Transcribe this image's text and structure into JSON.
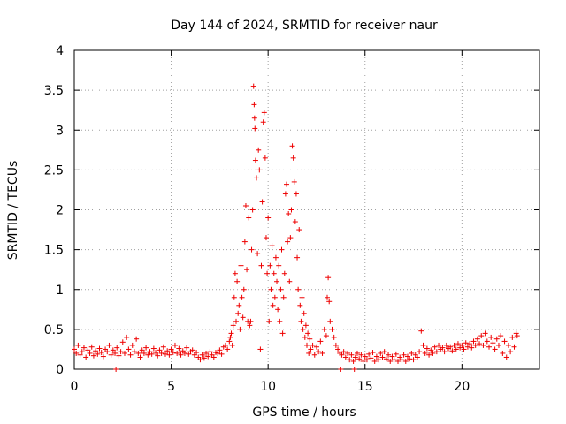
{
  "chart_data": {
    "type": "scatter",
    "title": "Day 144 of 2024, SRMTID for receiver naur",
    "xlabel": "GPS time / hours",
    "ylabel": "SRMTID / TECUs",
    "xlim": [
      0,
      24
    ],
    "ylim": [
      0,
      4
    ],
    "x_ticks": [
      0,
      5,
      10,
      15,
      20
    ],
    "y_ticks": [
      0,
      0.5,
      1,
      1.5,
      2,
      2.5,
      3,
      3.5,
      4
    ],
    "x_tick_labels": [
      "0",
      "5",
      "10",
      "15",
      "20"
    ],
    "y_tick_labels": [
      "0",
      "0.5",
      "1",
      "1.5",
      "2",
      "2.5",
      "3",
      "3.5",
      "4"
    ],
    "grid": true,
    "marker": "+",
    "color": "#ee0000",
    "series": [
      {
        "name": "SRMTID",
        "points": [
          [
            0.0,
            0.25
          ],
          [
            0.1,
            0.2
          ],
          [
            0.2,
            0.3
          ],
          [
            0.3,
            0.18
          ],
          [
            0.4,
            0.22
          ],
          [
            0.5,
            0.27
          ],
          [
            0.6,
            0.15
          ],
          [
            0.7,
            0.24
          ],
          [
            0.8,
            0.2
          ],
          [
            0.9,
            0.28
          ],
          [
            1.0,
            0.17
          ],
          [
            1.1,
            0.23
          ],
          [
            1.2,
            0.19
          ],
          [
            1.3,
            0.26
          ],
          [
            1.4,
            0.21
          ],
          [
            1.5,
            0.16
          ],
          [
            1.6,
            0.25
          ],
          [
            1.7,
            0.22
          ],
          [
            1.8,
            0.3
          ],
          [
            1.9,
            0.18
          ],
          [
            2.0,
            0.24
          ],
          [
            2.1,
            0.2
          ],
          [
            2.15,
            0.0
          ],
          [
            2.2,
            0.27
          ],
          [
            2.3,
            0.17
          ],
          [
            2.4,
            0.22
          ],
          [
            2.5,
            0.34
          ],
          [
            2.6,
            0.2
          ],
          [
            2.7,
            0.4
          ],
          [
            2.8,
            0.25
          ],
          [
            2.9,
            0.18
          ],
          [
            3.0,
            0.3
          ],
          [
            3.1,
            0.22
          ],
          [
            3.2,
            0.38
          ],
          [
            3.3,
            0.2
          ],
          [
            3.4,
            0.15
          ],
          [
            3.5,
            0.24
          ],
          [
            3.6,
            0.2
          ],
          [
            3.7,
            0.27
          ],
          [
            3.8,
            0.18
          ],
          [
            3.9,
            0.22
          ],
          [
            4.0,
            0.19
          ],
          [
            4.1,
            0.26
          ],
          [
            4.2,
            0.21
          ],
          [
            4.3,
            0.17
          ],
          [
            4.4,
            0.24
          ],
          [
            4.5,
            0.2
          ],
          [
            4.6,
            0.28
          ],
          [
            4.7,
            0.19
          ],
          [
            4.8,
            0.23
          ],
          [
            4.9,
            0.18
          ],
          [
            5.0,
            0.25
          ],
          [
            5.1,
            0.21
          ],
          [
            5.2,
            0.3
          ],
          [
            5.3,
            0.2
          ],
          [
            5.4,
            0.26
          ],
          [
            5.5,
            0.18
          ],
          [
            5.6,
            0.23
          ],
          [
            5.7,
            0.2
          ],
          [
            5.8,
            0.27
          ],
          [
            5.9,
            0.19
          ],
          [
            6.0,
            0.22
          ],
          [
            6.1,
            0.24
          ],
          [
            6.2,
            0.18
          ],
          [
            6.3,
            0.21
          ],
          [
            6.4,
            0.15
          ],
          [
            6.5,
            0.12
          ],
          [
            6.6,
            0.18
          ],
          [
            6.7,
            0.14
          ],
          [
            6.8,
            0.2
          ],
          [
            6.9,
            0.16
          ],
          [
            7.0,
            0.22
          ],
          [
            7.1,
            0.18
          ],
          [
            7.2,
            0.15
          ],
          [
            7.3,
            0.21
          ],
          [
            7.4,
            0.2
          ],
          [
            7.5,
            0.24
          ],
          [
            7.6,
            0.19
          ],
          [
            7.7,
            0.28
          ],
          [
            7.8,
            0.3
          ],
          [
            7.9,
            0.25
          ],
          [
            8.0,
            0.35
          ],
          [
            8.05,
            0.4
          ],
          [
            8.1,
            0.45
          ],
          [
            8.15,
            0.3
          ],
          [
            8.2,
            0.55
          ],
          [
            8.25,
            0.9
          ],
          [
            8.3,
            1.2
          ],
          [
            8.35,
            0.6
          ],
          [
            8.4,
            1.1
          ],
          [
            8.45,
            0.7
          ],
          [
            8.5,
            0.8
          ],
          [
            8.55,
            0.5
          ],
          [
            8.6,
            1.3
          ],
          [
            8.65,
            0.9
          ],
          [
            8.7,
            0.65
          ],
          [
            8.75,
            1.0
          ],
          [
            8.8,
            1.6
          ],
          [
            8.85,
            2.05
          ],
          [
            8.9,
            1.25
          ],
          [
            8.95,
            0.6
          ],
          [
            9.0,
            1.9
          ],
          [
            9.05,
            0.55
          ],
          [
            9.1,
            0.6
          ],
          [
            9.15,
            1.5
          ],
          [
            9.2,
            2.0
          ],
          [
            9.25,
            3.55
          ],
          [
            9.28,
            3.32
          ],
          [
            9.3,
            3.15
          ],
          [
            9.32,
            3.02
          ],
          [
            9.35,
            2.62
          ],
          [
            9.4,
            2.4
          ],
          [
            9.45,
            1.45
          ],
          [
            9.5,
            2.75
          ],
          [
            9.55,
            2.5
          ],
          [
            9.6,
            0.25
          ],
          [
            9.65,
            1.3
          ],
          [
            9.7,
            2.1
          ],
          [
            9.75,
            3.1
          ],
          [
            9.8,
            3.22
          ],
          [
            9.85,
            2.65
          ],
          [
            9.9,
            1.65
          ],
          [
            9.95,
            1.2
          ],
          [
            10.0,
            1.9
          ],
          [
            10.05,
            0.6
          ],
          [
            10.1,
            1.3
          ],
          [
            10.15,
            1.0
          ],
          [
            10.2,
            1.55
          ],
          [
            10.25,
            0.8
          ],
          [
            10.3,
            1.2
          ],
          [
            10.35,
            0.9
          ],
          [
            10.4,
            1.4
          ],
          [
            10.45,
            1.1
          ],
          [
            10.5,
            0.75
          ],
          [
            10.55,
            1.3
          ],
          [
            10.6,
            0.6
          ],
          [
            10.65,
            1.0
          ],
          [
            10.7,
            1.5
          ],
          [
            10.75,
            0.45
          ],
          [
            10.8,
            0.9
          ],
          [
            10.85,
            1.2
          ],
          [
            10.9,
            2.2
          ],
          [
            10.95,
            2.32
          ],
          [
            11.0,
            1.6
          ],
          [
            11.05,
            1.95
          ],
          [
            11.1,
            1.1
          ],
          [
            11.15,
            1.65
          ],
          [
            11.2,
            2.0
          ],
          [
            11.25,
            2.8
          ],
          [
            11.3,
            2.65
          ],
          [
            11.35,
            2.35
          ],
          [
            11.4,
            1.85
          ],
          [
            11.45,
            2.2
          ],
          [
            11.5,
            1.4
          ],
          [
            11.55,
            1.0
          ],
          [
            11.6,
            1.75
          ],
          [
            11.65,
            0.8
          ],
          [
            11.7,
            0.6
          ],
          [
            11.75,
            0.9
          ],
          [
            11.8,
            0.5
          ],
          [
            11.85,
            0.7
          ],
          [
            11.9,
            0.4
          ],
          [
            11.95,
            0.55
          ],
          [
            12.0,
            0.3
          ],
          [
            12.05,
            0.45
          ],
          [
            12.1,
            0.2
          ],
          [
            12.15,
            0.38
          ],
          [
            12.2,
            0.25
          ],
          [
            12.3,
            0.3
          ],
          [
            12.4,
            0.18
          ],
          [
            12.5,
            0.28
          ],
          [
            12.6,
            0.22
          ],
          [
            12.7,
            0.35
          ],
          [
            12.8,
            0.2
          ],
          [
            12.9,
            0.5
          ],
          [
            13.0,
            0.42
          ],
          [
            13.05,
            0.9
          ],
          [
            13.1,
            1.15
          ],
          [
            13.15,
            0.85
          ],
          [
            13.2,
            0.6
          ],
          [
            13.3,
            0.5
          ],
          [
            13.4,
            0.4
          ],
          [
            13.5,
            0.3
          ],
          [
            13.6,
            0.25
          ],
          [
            13.7,
            0.2
          ],
          [
            13.75,
            0.0
          ],
          [
            13.8,
            0.18
          ],
          [
            13.9,
            0.22
          ],
          [
            14.0,
            0.15
          ],
          [
            14.1,
            0.2
          ],
          [
            14.2,
            0.12
          ],
          [
            14.3,
            0.18
          ],
          [
            14.4,
            0.1
          ],
          [
            14.45,
            0.0
          ],
          [
            14.5,
            0.15
          ],
          [
            14.6,
            0.2
          ],
          [
            14.7,
            0.13
          ],
          [
            14.8,
            0.18
          ],
          [
            14.9,
            0.1
          ],
          [
            15.0,
            0.16
          ],
          [
            15.1,
            0.12
          ],
          [
            15.2,
            0.19
          ],
          [
            15.3,
            0.14
          ],
          [
            15.4,
            0.21
          ],
          [
            15.5,
            0.1
          ],
          [
            15.6,
            0.16
          ],
          [
            15.7,
            0.12
          ],
          [
            15.8,
            0.2
          ],
          [
            15.9,
            0.15
          ],
          [
            16.0,
            0.22
          ],
          [
            16.1,
            0.13
          ],
          [
            16.2,
            0.18
          ],
          [
            16.3,
            0.1
          ],
          [
            16.4,
            0.16
          ],
          [
            16.5,
            0.12
          ],
          [
            16.6,
            0.19
          ],
          [
            16.7,
            0.1
          ],
          [
            16.8,
            0.15
          ],
          [
            16.9,
            0.12
          ],
          [
            17.0,
            0.18
          ],
          [
            17.1,
            0.1
          ],
          [
            17.2,
            0.16
          ],
          [
            17.3,
            0.13
          ],
          [
            17.4,
            0.2
          ],
          [
            17.5,
            0.12
          ],
          [
            17.6,
            0.18
          ],
          [
            17.7,
            0.15
          ],
          [
            17.8,
            0.22
          ],
          [
            17.9,
            0.48
          ],
          [
            18.0,
            0.3
          ],
          [
            18.1,
            0.2
          ],
          [
            18.2,
            0.26
          ],
          [
            18.3,
            0.18
          ],
          [
            18.4,
            0.24
          ],
          [
            18.5,
            0.2
          ],
          [
            18.6,
            0.28
          ],
          [
            18.7,
            0.22
          ],
          [
            18.8,
            0.3
          ],
          [
            18.9,
            0.25
          ],
          [
            19.0,
            0.27
          ],
          [
            19.1,
            0.22
          ],
          [
            19.2,
            0.3
          ],
          [
            19.3,
            0.26
          ],
          [
            19.4,
            0.28
          ],
          [
            19.5,
            0.23
          ],
          [
            19.6,
            0.3
          ],
          [
            19.7,
            0.25
          ],
          [
            19.8,
            0.32
          ],
          [
            19.9,
            0.27
          ],
          [
            20.0,
            0.3
          ],
          [
            20.1,
            0.25
          ],
          [
            20.2,
            0.33
          ],
          [
            20.3,
            0.28
          ],
          [
            20.4,
            0.32
          ],
          [
            20.5,
            0.27
          ],
          [
            20.6,
            0.35
          ],
          [
            20.7,
            0.3
          ],
          [
            20.8,
            0.38
          ],
          [
            20.9,
            0.32
          ],
          [
            21.0,
            0.42
          ],
          [
            21.1,
            0.3
          ],
          [
            21.2,
            0.45
          ],
          [
            21.3,
            0.35
          ],
          [
            21.4,
            0.28
          ],
          [
            21.5,
            0.4
          ],
          [
            21.6,
            0.33
          ],
          [
            21.7,
            0.25
          ],
          [
            21.8,
            0.38
          ],
          [
            21.9,
            0.3
          ],
          [
            22.0,
            0.42
          ],
          [
            22.1,
            0.2
          ],
          [
            22.2,
            0.35
          ],
          [
            22.3,
            0.15
          ],
          [
            22.4,
            0.3
          ],
          [
            22.5,
            0.22
          ],
          [
            22.6,
            0.4
          ],
          [
            22.7,
            0.28
          ],
          [
            22.8,
            0.45
          ],
          [
            22.85,
            0.42
          ]
        ]
      }
    ]
  }
}
